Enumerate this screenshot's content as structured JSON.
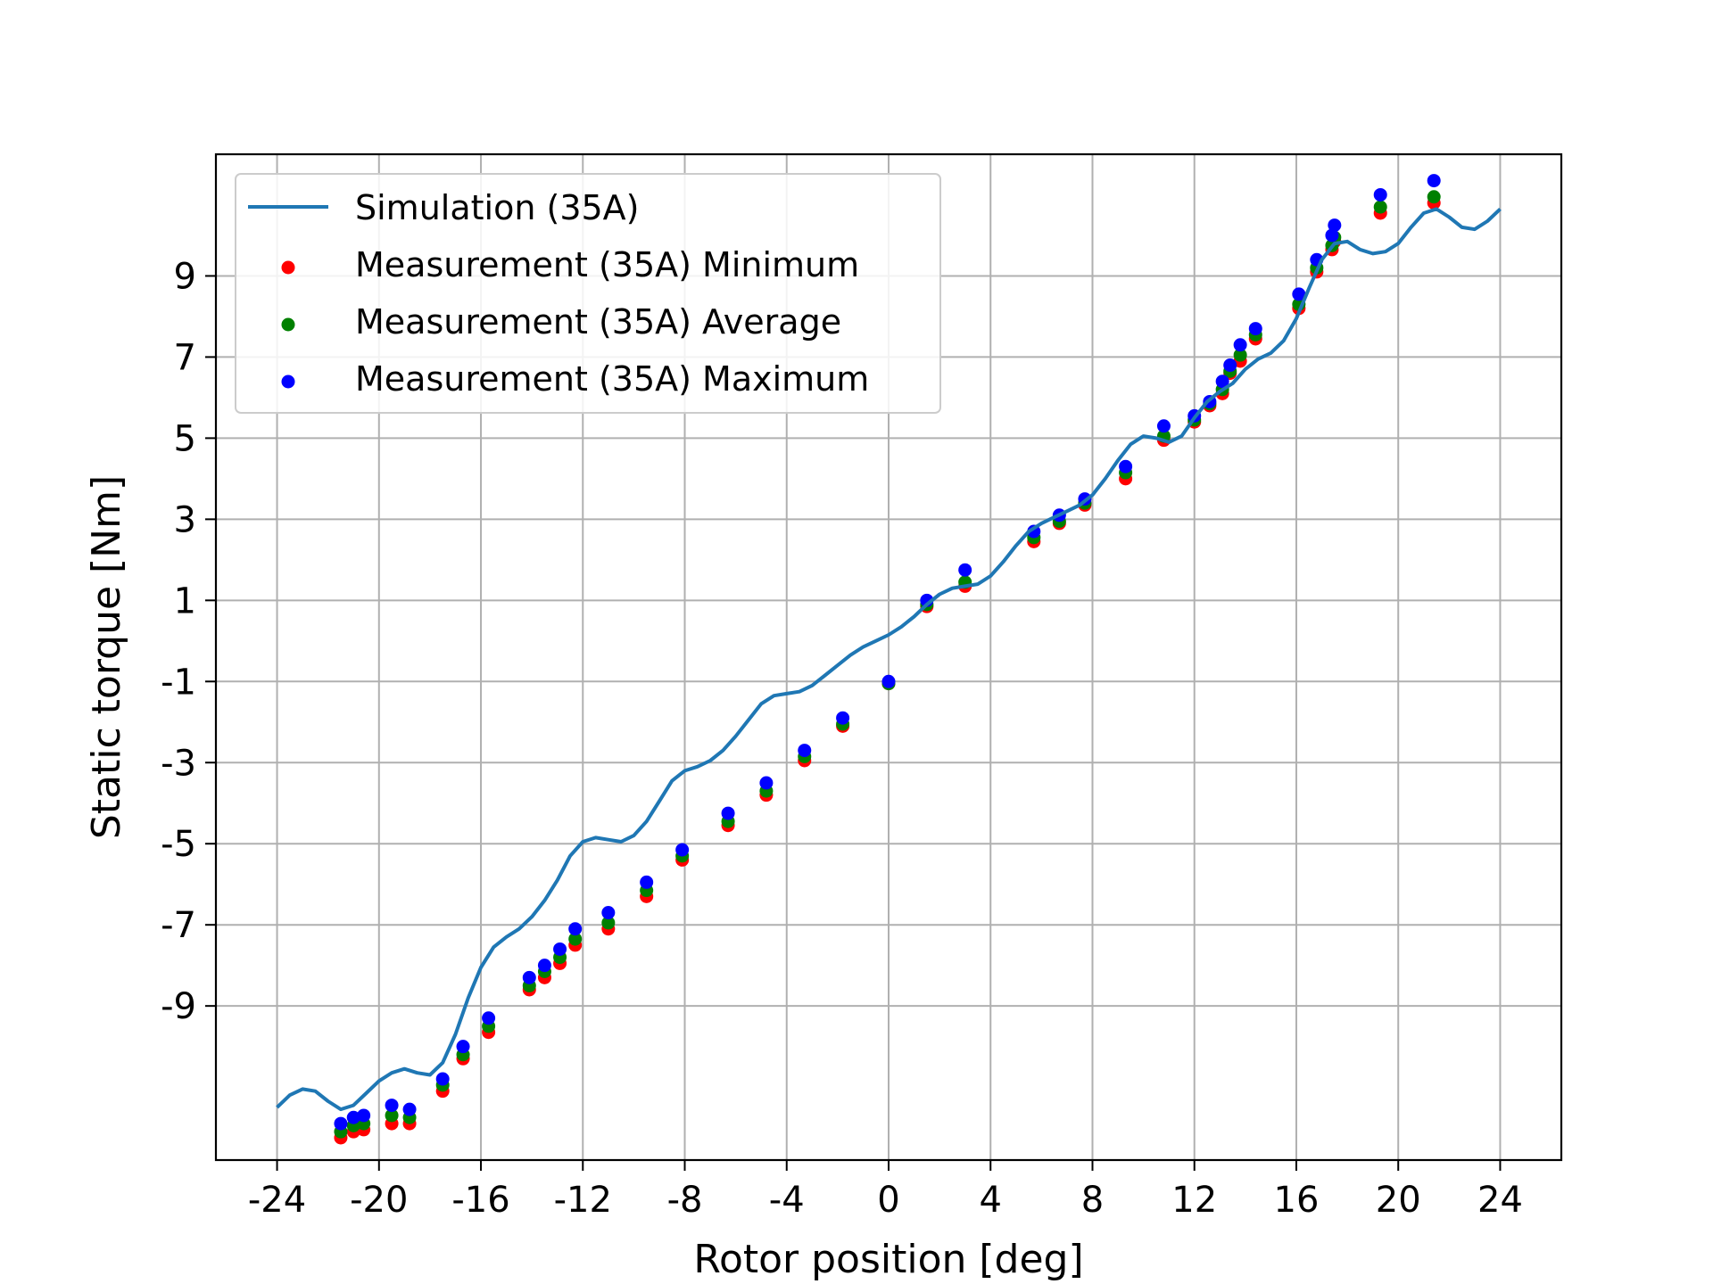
{
  "chart_data": {
    "type": "line+scatter",
    "xlabel": "Rotor position [deg]",
    "ylabel": "Static torque [Nm]",
    "xlim": [
      -26.4,
      26.4
    ],
    "ylim": [
      -12.8,
      12.0
    ],
    "xticks": [
      "-24",
      "-20",
      "-16",
      "-12",
      "-8",
      "-4",
      "0",
      "4",
      "8",
      "12",
      "16",
      "20",
      "24"
    ],
    "yticks": [
      "-9",
      "-7",
      "-5",
      "-3",
      "-1",
      "1",
      "3",
      "5",
      "7",
      "9"
    ],
    "grid": true,
    "legend_placement": "top-left",
    "series": [
      {
        "name": "Simulation (35A)",
        "kind": "line",
        "color": "#1f77b4",
        "x": [
          -24,
          -23.5,
          -23,
          -22.5,
          -22,
          -21.5,
          -21,
          -20.5,
          -20,
          -19.5,
          -19,
          -18.5,
          -18,
          -17.5,
          -17,
          -16.5,
          -16,
          -15.5,
          -15,
          -14.5,
          -14,
          -13.5,
          -13,
          -12.5,
          -12,
          -11.5,
          -11,
          -10.5,
          -10,
          -9.5,
          -9,
          -8.5,
          -8,
          -7.5,
          -7,
          -6.5,
          -6,
          -5.5,
          -5,
          -4.5,
          -4,
          -3.5,
          -3,
          -2.5,
          -2,
          -1.5,
          -1,
          -0.5,
          0,
          0.5,
          1,
          1.5,
          2,
          2.5,
          3,
          3.5,
          4,
          4.5,
          5,
          5.5,
          6,
          6.5,
          7,
          7.5,
          8,
          8.5,
          9,
          9.5,
          10,
          10.5,
          11,
          11.5,
          12,
          12.5,
          13,
          13.5,
          14,
          14.5,
          15,
          15.5,
          16,
          16.5,
          17,
          17.5,
          18,
          18.5,
          19,
          19.5,
          20,
          20.5,
          21,
          21.5,
          22,
          22.5,
          23,
          23.5,
          24
        ],
        "y": [
          -11.5,
          -11.2,
          -11.05,
          -11.1,
          -11.35,
          -11.55,
          -11.45,
          -11.15,
          -10.85,
          -10.65,
          -10.55,
          -10.65,
          -10.7,
          -10.4,
          -9.7,
          -8.8,
          -8.05,
          -7.55,
          -7.3,
          -7.1,
          -6.8,
          -6.4,
          -5.9,
          -5.3,
          -4.95,
          -4.85,
          -4.9,
          -4.95,
          -4.8,
          -4.45,
          -3.95,
          -3.45,
          -3.2,
          -3.1,
          -2.95,
          -2.7,
          -2.35,
          -1.95,
          -1.55,
          -1.35,
          -1.3,
          -1.25,
          -1.1,
          -0.85,
          -0.6,
          -0.35,
          -0.15,
          0.0,
          0.15,
          0.35,
          0.6,
          0.9,
          1.15,
          1.3,
          1.35,
          1.4,
          1.6,
          1.95,
          2.35,
          2.7,
          2.9,
          3.05,
          3.2,
          3.35,
          3.6,
          4.0,
          4.45,
          4.85,
          5.05,
          5.0,
          4.9,
          5.05,
          5.5,
          5.9,
          6.15,
          6.35,
          6.7,
          6.95,
          7.1,
          7.4,
          7.95,
          8.7,
          9.4,
          9.8,
          9.85,
          9.65,
          9.55,
          9.6,
          9.8,
          10.2,
          10.55,
          10.65,
          10.45,
          10.2,
          10.15,
          10.35,
          10.65
        ]
      },
      {
        "name": "Measurement (35A) Minimum",
        "kind": "scatter",
        "color": "#ff0000",
        "x": [
          -21.5,
          -21.0,
          -20.6,
          -19.5,
          -18.8,
          -17.5,
          -16.7,
          -15.7,
          -14.1,
          -13.5,
          -12.9,
          -12.3,
          -11.0,
          -9.5,
          -8.1,
          -6.3,
          -4.8,
          -3.3,
          -1.8,
          0.0,
          1.5,
          3.0,
          5.7,
          6.7,
          7.7,
          9.3,
          10.8,
          12.0,
          12.6,
          13.1,
          13.4,
          13.8,
          14.4,
          16.1,
          16.8,
          17.4,
          17.5,
          19.3,
          21.4
        ],
        "y": [
          -12.25,
          -12.1,
          -12.05,
          -11.9,
          -11.9,
          -11.1,
          -10.3,
          -9.65,
          -8.6,
          -8.3,
          -7.95,
          -7.5,
          -7.1,
          -6.3,
          -5.4,
          -4.55,
          -3.8,
          -2.95,
          -2.1,
          -1.05,
          0.85,
          1.35,
          2.45,
          2.9,
          3.35,
          4.0,
          4.95,
          5.4,
          5.8,
          6.1,
          6.6,
          6.9,
          7.45,
          8.2,
          9.1,
          9.65,
          9.85,
          10.55,
          10.8
        ]
      },
      {
        "name": "Measurement (35A) Average",
        "kind": "scatter",
        "color": "#008000",
        "x": [
          -21.5,
          -21.0,
          -20.6,
          -19.5,
          -18.8,
          -17.5,
          -16.7,
          -15.7,
          -14.1,
          -13.5,
          -12.9,
          -12.3,
          -11.0,
          -9.5,
          -8.1,
          -6.3,
          -4.8,
          -3.3,
          -1.8,
          0.0,
          1.5,
          3.0,
          5.7,
          6.7,
          7.7,
          9.3,
          10.8,
          12.0,
          12.6,
          13.1,
          13.4,
          13.8,
          14.4,
          16.1,
          16.8,
          17.4,
          17.5,
          19.3,
          21.4
        ],
        "y": [
          -12.1,
          -11.95,
          -11.9,
          -11.7,
          -11.75,
          -10.95,
          -10.2,
          -9.5,
          -8.5,
          -8.15,
          -7.8,
          -7.35,
          -6.95,
          -6.15,
          -5.3,
          -4.45,
          -3.7,
          -2.85,
          -2.05,
          -1.05,
          0.9,
          1.45,
          2.55,
          2.95,
          3.4,
          4.15,
          5.05,
          5.45,
          5.85,
          6.2,
          6.65,
          7.05,
          7.55,
          8.3,
          9.2,
          9.75,
          9.95,
          10.7,
          10.95
        ]
      },
      {
        "name": "Measurement (35A) Maximum",
        "kind": "scatter",
        "color": "#0000ff",
        "x": [
          -21.5,
          -21.0,
          -20.6,
          -19.5,
          -18.8,
          -17.5,
          -16.7,
          -15.7,
          -14.1,
          -13.5,
          -12.9,
          -12.3,
          -11.0,
          -9.5,
          -8.1,
          -6.3,
          -4.8,
          -3.3,
          -1.8,
          0.0,
          1.5,
          3.0,
          5.7,
          6.7,
          7.7,
          9.3,
          10.8,
          12.0,
          12.6,
          13.1,
          13.4,
          13.8,
          14.4,
          16.1,
          16.8,
          17.4,
          17.5,
          19.3,
          21.4
        ],
        "y": [
          -11.9,
          -11.75,
          -11.7,
          -11.45,
          -11.55,
          -10.8,
          -10.0,
          -9.3,
          -8.3,
          -8.0,
          -7.6,
          -7.1,
          -6.7,
          -5.95,
          -5.15,
          -4.25,
          -3.5,
          -2.7,
          -1.9,
          -1.0,
          1.0,
          1.75,
          2.7,
          3.1,
          3.5,
          4.3,
          5.3,
          5.55,
          5.9,
          6.4,
          6.8,
          7.3,
          7.7,
          8.55,
          9.4,
          10.0,
          10.25,
          11.0,
          11.35
        ]
      }
    ]
  }
}
